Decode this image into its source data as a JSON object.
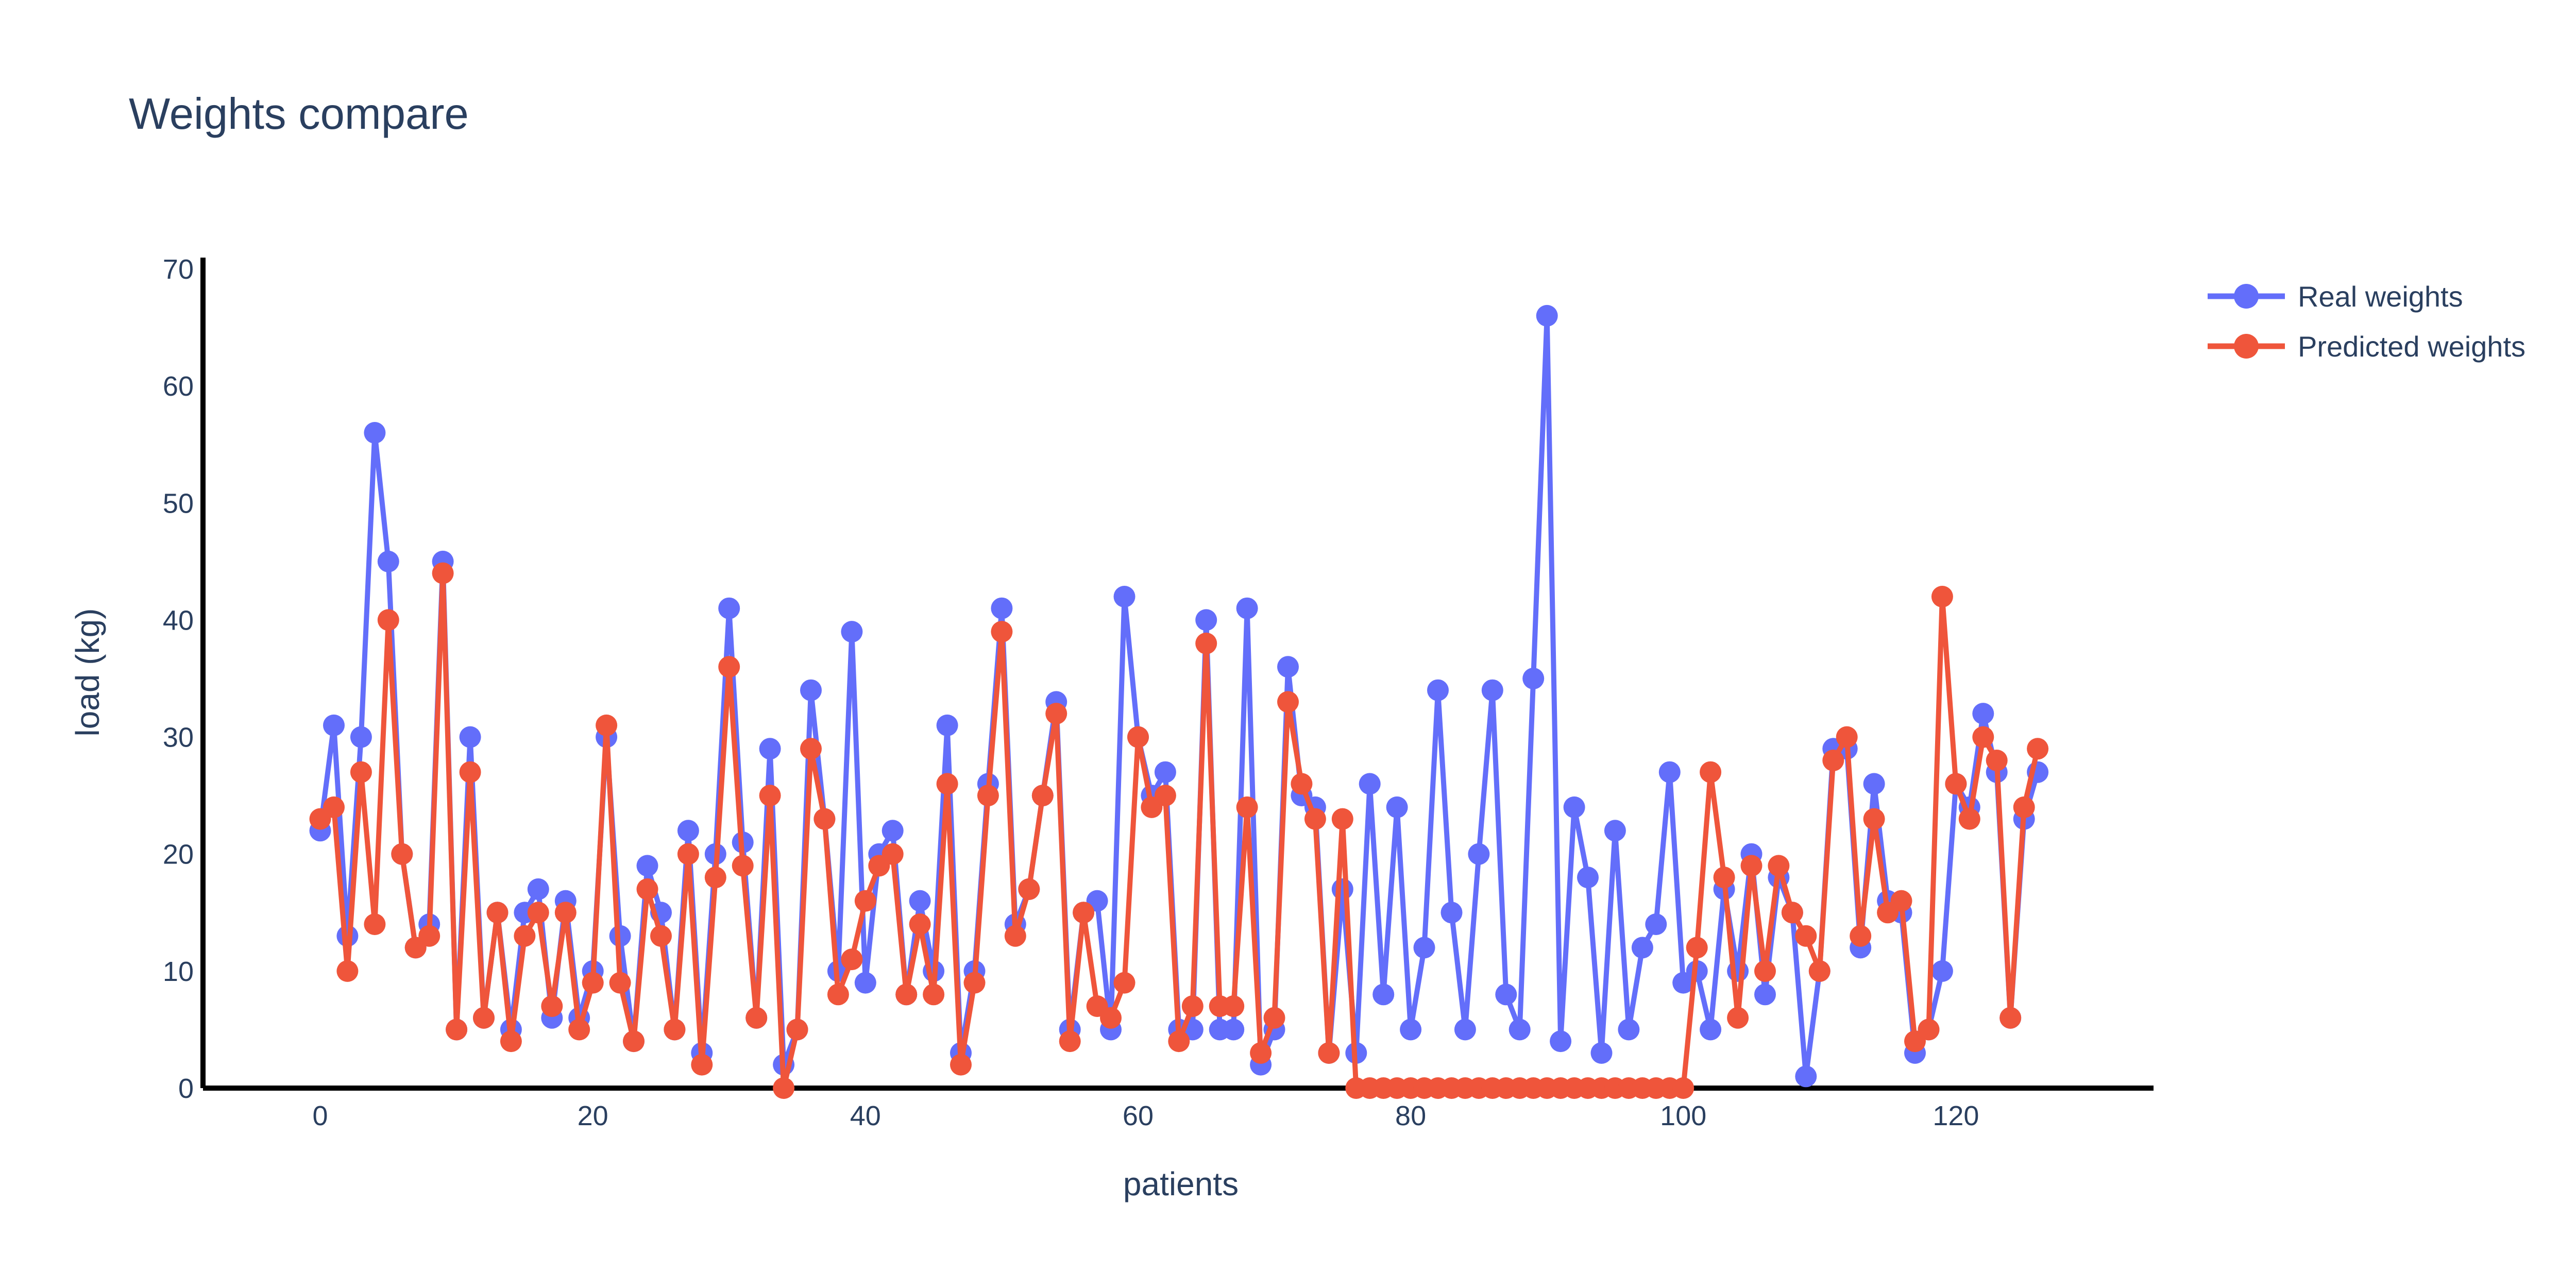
{
  "chart_data": {
    "type": "line",
    "title": "Weights compare",
    "xlabel": "patients",
    "ylabel": "load (kg)",
    "xlim": [
      -8.6,
      134.5
    ],
    "ylim": [
      0,
      70
    ],
    "xticks": [
      0,
      20,
      40,
      60,
      80,
      100,
      120
    ],
    "yticks": [
      0,
      10,
      20,
      30,
      40,
      50,
      60,
      70
    ],
    "grid": false,
    "legend_position": "top-right",
    "x": [
      0,
      1,
      2,
      3,
      4,
      5,
      6,
      7,
      8,
      9,
      10,
      11,
      12,
      13,
      14,
      15,
      16,
      17,
      18,
      19,
      20,
      21,
      22,
      23,
      24,
      25,
      26,
      27,
      28,
      29,
      30,
      31,
      32,
      33,
      34,
      35,
      36,
      37,
      38,
      39,
      40,
      41,
      42,
      43,
      44,
      45,
      46,
      47,
      48,
      49,
      50,
      51,
      52,
      53,
      54,
      55,
      56,
      57,
      58,
      59,
      60,
      61,
      62,
      63,
      64,
      65,
      66,
      67,
      68,
      69,
      70,
      71,
      72,
      73,
      74,
      75,
      76,
      77,
      78,
      79,
      80,
      81,
      82,
      83,
      84,
      85,
      86,
      87,
      88,
      89,
      90,
      91,
      92,
      93,
      94,
      95,
      96,
      97,
      98,
      99,
      100,
      101,
      102,
      103,
      104,
      105,
      106,
      107,
      108,
      109,
      110,
      111,
      112,
      113,
      114,
      115,
      116,
      117,
      118,
      119,
      120,
      121,
      122,
      123,
      124,
      125,
      126
    ],
    "series": [
      {
        "name": "Real weights",
        "color": "#636efa",
        "values": [
          22,
          31,
          13,
          30,
          56,
          45,
          20,
          12,
          14,
          45,
          5,
          30,
          6,
          15,
          5,
          15,
          17,
          6,
          16,
          6,
          10,
          30,
          13,
          4,
          19,
          15,
          5,
          22,
          3,
          20,
          41,
          21,
          6,
          29,
          2,
          5,
          34,
          23,
          10,
          39,
          9,
          20,
          22,
          8,
          16,
          10,
          31,
          3,
          10,
          26,
          41,
          14,
          17,
          25,
          33,
          5,
          15,
          16,
          5,
          42,
          30,
          25,
          27,
          5,
          5,
          40,
          5,
          5,
          41,
          2,
          5,
          36,
          25,
          24,
          3,
          17,
          3,
          26,
          8,
          24,
          5,
          12,
          34,
          15,
          5,
          20,
          34,
          8,
          5,
          35,
          66,
          4,
          24,
          18,
          3,
          22,
          5,
          12,
          14,
          27,
          9,
          10,
          5,
          17,
          10,
          20,
          8,
          18,
          15,
          1,
          10,
          29,
          29,
          12,
          26,
          16,
          15,
          3,
          5,
          10,
          26,
          24,
          32,
          27,
          6,
          23,
          27
        ]
      },
      {
        "name": "Predicted weights",
        "color": "#ef553b",
        "values": [
          23,
          24,
          10,
          27,
          14,
          40,
          20,
          12,
          13,
          44,
          5,
          27,
          6,
          15,
          4,
          13,
          15,
          7,
          15,
          5,
          9,
          31,
          9,
          4,
          17,
          13,
          5,
          20,
          2,
          18,
          36,
          19,
          6,
          25,
          0,
          5,
          29,
          23,
          8,
          11,
          16,
          19,
          20,
          8,
          14,
          8,
          26,
          2,
          9,
          25,
          39,
          13,
          17,
          25,
          32,
          4,
          15,
          7,
          6,
          9,
          30,
          24,
          25,
          4,
          7,
          38,
          7,
          7,
          24,
          3,
          6,
          33,
          26,
          23,
          3,
          23,
          0,
          0,
          0,
          0,
          0,
          0,
          0,
          0,
          0,
          0,
          0,
          0,
          0,
          0,
          0,
          0,
          0,
          0,
          0,
          0,
          0,
          0,
          0,
          0,
          0,
          12,
          27,
          18,
          6,
          19,
          10,
          19,
          15,
          13,
          10,
          28,
          30,
          13,
          23,
          15,
          16,
          4,
          5,
          42,
          26,
          23,
          30,
          28,
          6,
          24,
          29
        ]
      }
    ]
  }
}
